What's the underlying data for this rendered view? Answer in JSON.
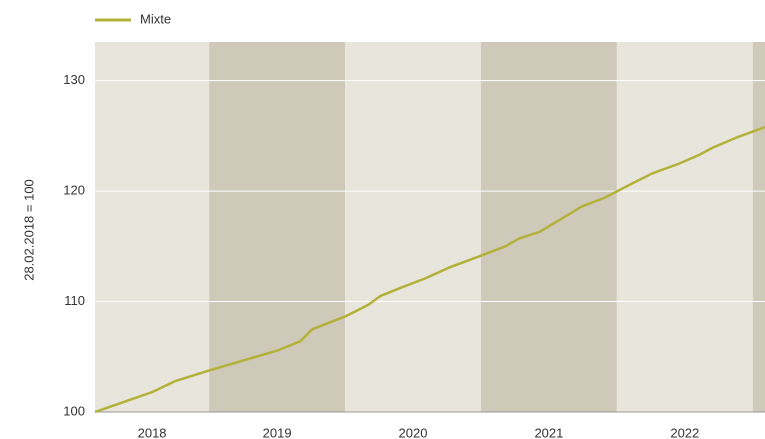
{
  "chart_data": {
    "type": "line",
    "y_label": "28.02.2018 = 100",
    "categories": [
      "2018",
      "2019",
      "2020",
      "2021",
      "2022",
      null
    ],
    "x": [
      2018.16,
      2018.58,
      2018.75,
      2019.01,
      2019.51,
      2019.67,
      2019.76,
      2020.01,
      2020.17,
      2020.26,
      2020.4,
      2020.59,
      2020.77,
      2021.01,
      2021.18,
      2021.28,
      2021.43,
      2021.58,
      2021.74,
      2021.91,
      2022.13,
      2022.26,
      2022.46,
      2022.61,
      2022.7,
      2022.87,
      2023.09
    ],
    "series": [
      {
        "name": "Mixte",
        "color": "#b3b13a",
        "values": [
          100,
          101.8,
          102.8,
          103.8,
          105.6,
          106.4,
          107.5,
          108.7,
          109.7,
          110.5,
          111.2,
          112.1,
          113.1,
          114.2,
          115.0,
          115.7,
          116.3,
          117.4,
          118.6,
          119.4,
          120.8,
          121.6,
          122.5,
          123.3,
          123.9,
          124.8,
          125.8
        ]
      }
    ],
    "xlim": [
      2018.16,
      2023.09
    ],
    "ylim": [
      100,
      133.5
    ],
    "yticks": [
      100,
      110,
      120,
      130
    ],
    "grid": true,
    "band_colors": [
      "#e8e5dc",
      "#cfc9b9"
    ],
    "legend": "top-left"
  }
}
